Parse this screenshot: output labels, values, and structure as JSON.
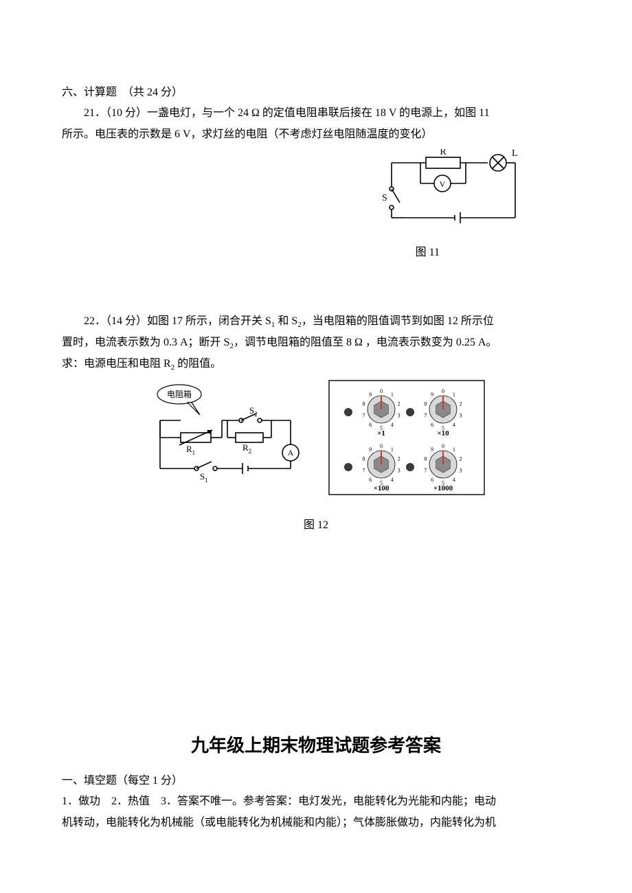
{
  "section6": {
    "heading": "六、计算题　（共 24 分）",
    "q21_line1_a": "21．（10 分）一盏电灯，与一个 24 Ω 的定值电阻串联后接在 18 V 的电源上，如图 11",
    "q21_line2": "所示。电压表的示数是 6 V，求灯丝的电阻（不考虑灯丝电阻随温度的变化）",
    "fig11": {
      "caption": "图 11",
      "labels": {
        "R": "R",
        "L": "L",
        "V": "V",
        "S": "S"
      },
      "colors": {
        "stroke": "#000000",
        "fill": "#ffffff"
      }
    },
    "q22_line1_a": "22．（14 分）如图 17 所示，闭合开关 S",
    "q22_line1_b": " 和 S",
    "q22_line1_c": "，当电阻箱的阻值调节到如图 12 所示位",
    "q22_line2_a": "置时，电流表示数为 0.3 A；断开 S",
    "q22_line2_b": "，调节电阻箱的阻值至 8  Ω ，电流表示数变为 0.25 A。",
    "q22_line3_a": "求：电源电压和电阻 R",
    "q22_line3_b": " 的阻值。",
    "sub1": "1",
    "sub2": "2",
    "fig12": {
      "caption": "图 12",
      "left": {
        "box_label": "电阻箱",
        "S2": "S",
        "S2_sub": "2",
        "R1": "R",
        "R1_sub": "1",
        "R2": "R",
        "R2_sub": "2",
        "S1": "S",
        "S1_sub": "1",
        "A": "A"
      },
      "right": {
        "mults": [
          "×1",
          "×10",
          "×100",
          "×1000"
        ],
        "digits": [
          "0",
          "1",
          "2",
          "3",
          "4",
          "5",
          "6",
          "7",
          "8",
          "9"
        ],
        "pointer_color": "#c43a2e",
        "dial_fill": "#d9d9d9",
        "knob_fill": "#8a8a8a",
        "terminal_fill": "#3a3a3a",
        "panel_stroke": "#000000",
        "panel_fill": "#ffffff"
      }
    }
  },
  "answers": {
    "title": "九年级上期末物理试题参考答案",
    "sec1_heading": "一、填空题（每空 1 分）",
    "line1": "1．做功　2．热值　3．答案不唯一。参考答案：电灯发光，电能转化为光能和内能；电动",
    "line2": "机转动，电能转化为机械能（或电能转化为机械能和内能）；气体膨胀做功，内能转化为机"
  }
}
